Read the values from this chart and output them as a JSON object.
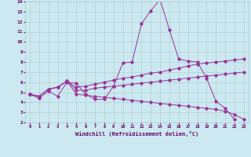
{
  "xlabel": "Windchill (Refroidissement éolien,°C)",
  "bg_color": "#cce8f0",
  "line_color": "#993399",
  "grid_color": "#aacccc",
  "text_color": "#660066",
  "xlim": [
    -0.5,
    23.5
  ],
  "ylim": [
    2,
    14
  ],
  "xticks": [
    0,
    1,
    2,
    3,
    4,
    5,
    6,
    7,
    8,
    9,
    10,
    11,
    12,
    13,
    14,
    15,
    16,
    17,
    18,
    19,
    20,
    21,
    22,
    23
  ],
  "yticks": [
    2,
    3,
    4,
    5,
    6,
    7,
    8,
    9,
    10,
    11,
    12,
    13,
    14
  ],
  "series": [
    {
      "x": [
        0,
        1,
        2,
        3,
        4,
        5,
        6,
        7,
        8,
        9,
        10,
        11,
        12,
        13,
        14,
        15,
        16,
        17,
        18,
        19,
        20,
        21,
        22
      ],
      "y": [
        4.8,
        4.4,
        5.1,
        4.6,
        6.0,
        5.9,
        4.8,
        4.3,
        4.3,
        5.6,
        7.9,
        8.0,
        11.8,
        13.1,
        14.2,
        11.2,
        8.3,
        8.1,
        8.0,
        6.4,
        4.1,
        3.4,
        2.3
      ]
    },
    {
      "x": [
        0,
        1,
        2,
        3,
        4,
        5,
        6,
        7,
        8,
        9,
        10,
        11,
        12,
        13,
        14,
        15,
        16,
        17,
        18,
        19,
        20,
        21,
        22,
        23
      ],
      "y": [
        4.8,
        4.6,
        5.3,
        5.5,
        6.1,
        5.5,
        5.6,
        5.8,
        6.0,
        6.2,
        6.4,
        6.5,
        6.7,
        6.9,
        7.0,
        7.2,
        7.4,
        7.6,
        7.8,
        7.9,
        8.0,
        8.1,
        8.2,
        8.3
      ]
    },
    {
      "x": [
        0,
        1,
        2,
        3,
        4,
        5,
        6,
        7,
        8,
        9,
        10,
        11,
        12,
        13,
        14,
        15,
        16,
        17,
        18,
        19,
        20,
        21,
        22,
        23
      ],
      "y": [
        4.8,
        4.6,
        5.3,
        5.5,
        6.1,
        5.2,
        5.2,
        5.4,
        5.5,
        5.6,
        5.7,
        5.8,
        5.9,
        6.0,
        6.1,
        6.2,
        6.3,
        6.4,
        6.5,
        6.6,
        6.7,
        6.8,
        6.9,
        7.0
      ]
    },
    {
      "x": [
        0,
        1,
        2,
        3,
        4,
        5,
        6,
        7,
        8,
        9,
        10,
        11,
        12,
        13,
        14,
        15,
        16,
        17,
        18,
        19,
        20,
        21,
        22,
        23
      ],
      "y": [
        4.8,
        4.6,
        5.3,
        5.5,
        6.1,
        4.8,
        4.7,
        4.6,
        4.5,
        4.4,
        4.3,
        4.2,
        4.1,
        4.0,
        3.9,
        3.8,
        3.7,
        3.6,
        3.5,
        3.4,
        3.3,
        3.1,
        2.8,
        2.3
      ]
    }
  ]
}
